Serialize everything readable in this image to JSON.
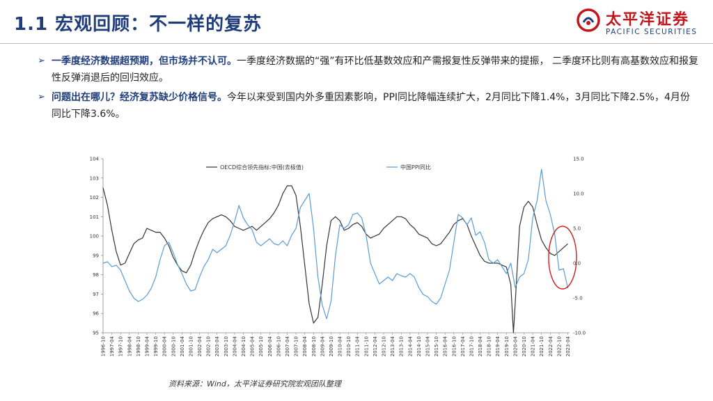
{
  "header": {
    "title": "1.1 宏观回顾：不一样的复苏",
    "logo_cn": "太平洋证券",
    "logo_en": "PACIFIC SECURITIES"
  },
  "bullets": [
    {
      "lead": "一季度经济数据超预期，但市场并不认可。",
      "text": "一季度经济数据的“强”有环比低基数效应和产需报复性反弹带来的提振， 二季度环比则有高基数效应和报复性反弹消退后的回归效应。"
    },
    {
      "lead": "问题出在哪儿？经济复苏缺少价格信号。",
      "text": "今年以来受到国内外多重因素影响，PPI同比降幅连续扩大，2月同比下降1.4%，3月同比下降2.5%，4月份同比下降3.6%。"
    }
  ],
  "source": "资料来源：Wind，太平洋证券研究院宏观团队整理",
  "colors": {
    "title": "#1f3d7a",
    "logo_red": "#c0161c",
    "oecd_line": "#333333",
    "ppi_line": "#5b9bd5",
    "highlight": "#cc1f1f"
  },
  "chart_data": {
    "type": "line",
    "x_ticks": [
      "1996-10",
      "1997-04",
      "1997-10",
      "1998-04",
      "1998-10",
      "1999-04",
      "1999-10",
      "2000-04",
      "2000-10",
      "2001-04",
      "2001-10",
      "2002-04",
      "2002-10",
      "2003-04",
      "2003-10",
      "2004-04",
      "2004-10",
      "2005-04",
      "2005-10",
      "2006-04",
      "2006-10",
      "2007-04",
      "2007-10",
      "2008-04",
      "2008-10",
      "2009-04",
      "2009-10",
      "2010-04",
      "2010-10",
      "2011-04",
      "2011-10",
      "2012-04",
      "2012-10",
      "2013-04",
      "2013-10",
      "2014-04",
      "2014-10",
      "2015-04",
      "2015-10",
      "2016-04",
      "2016-10",
      "2017-04",
      "2017-10",
      "2018-04",
      "2018-10",
      "2019-04",
      "2019-10",
      "2020-04",
      "2020-10",
      "2021-04",
      "2021-10",
      "2022-04",
      "2022-10",
      "2023-04"
    ],
    "y_left": {
      "min": 95,
      "max": 104,
      "ticks": [
        "95",
        "96",
        "97",
        "98",
        "99",
        "100",
        "101",
        "102",
        "103",
        "104"
      ]
    },
    "y_right": {
      "min": -10,
      "max": 15,
      "ticks": [
        "-10.0",
        "-5.0",
        "0.0",
        "5.0",
        "10.0",
        "15.0"
      ]
    },
    "series": [
      {
        "name": "OECD综合领先指标:中国(去极值)",
        "axis": "left",
        "points": [
          [
            1996.75,
            102.5
          ],
          [
            1997.0,
            101.6
          ],
          [
            1997.25,
            100.3
          ],
          [
            1997.5,
            99.2
          ],
          [
            1997.75,
            98.5
          ],
          [
            1998.0,
            98.6
          ],
          [
            1998.25,
            99.1
          ],
          [
            1998.5,
            99.6
          ],
          [
            1998.75,
            99.8
          ],
          [
            1999.0,
            99.9
          ],
          [
            1999.25,
            100.4
          ],
          [
            1999.5,
            100.3
          ],
          [
            1999.75,
            100.2
          ],
          [
            2000.0,
            100.2
          ],
          [
            2000.25,
            99.9
          ],
          [
            2000.5,
            99.5
          ],
          [
            2000.75,
            98.9
          ],
          [
            2001.0,
            98.5
          ],
          [
            2001.25,
            98.2
          ],
          [
            2001.5,
            98.1
          ],
          [
            2001.75,
            98.5
          ],
          [
            2002.0,
            99.2
          ],
          [
            2002.25,
            99.8
          ],
          [
            2002.5,
            100.3
          ],
          [
            2002.75,
            100.7
          ],
          [
            2003.0,
            100.9
          ],
          [
            2003.25,
            101.0
          ],
          [
            2003.5,
            101.1
          ],
          [
            2003.75,
            101.0
          ],
          [
            2004.0,
            100.8
          ],
          [
            2004.25,
            100.5
          ],
          [
            2004.5,
            100.4
          ],
          [
            2004.75,
            100.3
          ],
          [
            2005.0,
            100.4
          ],
          [
            2005.25,
            100.5
          ],
          [
            2005.5,
            100.3
          ],
          [
            2005.75,
            100.5
          ],
          [
            2006.0,
            100.7
          ],
          [
            2006.25,
            100.9
          ],
          [
            2006.5,
            101.2
          ],
          [
            2006.75,
            101.6
          ],
          [
            2007.0,
            102.2
          ],
          [
            2007.25,
            102.6
          ],
          [
            2007.5,
            102.6
          ],
          [
            2007.75,
            102.1
          ],
          [
            2008.0,
            100.5
          ],
          [
            2008.25,
            98.5
          ],
          [
            2008.5,
            96.5
          ],
          [
            2008.75,
            95.5
          ],
          [
            2009.0,
            95.8
          ],
          [
            2009.25,
            97.5
          ],
          [
            2009.5,
            99.5
          ],
          [
            2009.75,
            100.8
          ],
          [
            2010.0,
            101.0
          ],
          [
            2010.25,
            100.8
          ],
          [
            2010.5,
            100.3
          ],
          [
            2010.75,
            100.4
          ],
          [
            2011.0,
            100.6
          ],
          [
            2011.25,
            100.7
          ],
          [
            2011.5,
            100.5
          ],
          [
            2011.75,
            100.1
          ],
          [
            2012.0,
            99.9
          ],
          [
            2012.25,
            100.0
          ],
          [
            2012.5,
            100.1
          ],
          [
            2012.75,
            100.4
          ],
          [
            2013.0,
            100.6
          ],
          [
            2013.25,
            100.8
          ],
          [
            2013.5,
            101.0
          ],
          [
            2013.75,
            101.0
          ],
          [
            2014.0,
            100.9
          ],
          [
            2014.25,
            100.6
          ],
          [
            2014.5,
            100.4
          ],
          [
            2014.75,
            100.1
          ],
          [
            2015.0,
            100.0
          ],
          [
            2015.25,
            99.9
          ],
          [
            2015.5,
            99.6
          ],
          [
            2015.75,
            99.5
          ],
          [
            2016.0,
            99.6
          ],
          [
            2016.25,
            99.9
          ],
          [
            2016.5,
            100.2
          ],
          [
            2016.75,
            100.6
          ],
          [
            2017.0,
            100.8
          ],
          [
            2017.25,
            100.9
          ],
          [
            2017.5,
            100.6
          ],
          [
            2017.75,
            100.0
          ],
          [
            2018.0,
            99.5
          ],
          [
            2018.25,
            99.0
          ],
          [
            2018.5,
            98.7
          ],
          [
            2018.75,
            98.6
          ],
          [
            2019.0,
            98.6
          ],
          [
            2019.25,
            98.6
          ],
          [
            2019.5,
            98.5
          ],
          [
            2019.75,
            98.4
          ],
          [
            2020.0,
            97.5
          ],
          [
            2020.15,
            95.0
          ],
          [
            2020.25,
            96.5
          ],
          [
            2020.5,
            100.5
          ],
          [
            2020.75,
            101.5
          ],
          [
            2021.0,
            101.8
          ],
          [
            2021.25,
            101.5
          ],
          [
            2021.5,
            100.6
          ],
          [
            2021.75,
            99.8
          ],
          [
            2022.0,
            99.4
          ],
          [
            2022.25,
            99.1
          ],
          [
            2022.5,
            99.0
          ],
          [
            2022.75,
            99.2
          ],
          [
            2023.0,
            99.4
          ],
          [
            2023.25,
            99.6
          ]
        ]
      },
      {
        "name": "中国PPI同比",
        "axis": "right",
        "points": [
          [
            1996.75,
            0.0
          ],
          [
            1997.0,
            0.2
          ],
          [
            1997.25,
            -0.5
          ],
          [
            1997.5,
            -0.3
          ],
          [
            1997.75,
            -1.0
          ],
          [
            1998.0,
            -2.5
          ],
          [
            1998.25,
            -4.0
          ],
          [
            1998.5,
            -5.0
          ],
          [
            1998.75,
            -5.5
          ],
          [
            1999.0,
            -5.2
          ],
          [
            1999.25,
            -4.6
          ],
          [
            1999.5,
            -3.6
          ],
          [
            1999.75,
            -2.0
          ],
          [
            2000.0,
            0.5
          ],
          [
            2000.25,
            2.5
          ],
          [
            2000.5,
            3.0
          ],
          [
            2000.75,
            1.5
          ],
          [
            2001.0,
            -0.2
          ],
          [
            2001.25,
            -1.5
          ],
          [
            2001.5,
            -3.0
          ],
          [
            2001.75,
            -4.0
          ],
          [
            2002.0,
            -3.8
          ],
          [
            2002.25,
            -2.0
          ],
          [
            2002.5,
            -0.5
          ],
          [
            2002.75,
            0.5
          ],
          [
            2003.0,
            2.0
          ],
          [
            2003.25,
            1.5
          ],
          [
            2003.5,
            2.0
          ],
          [
            2003.75,
            2.5
          ],
          [
            2004.0,
            4.0
          ],
          [
            2004.25,
            6.0
          ],
          [
            2004.5,
            8.3
          ],
          [
            2004.75,
            6.5
          ],
          [
            2005.0,
            5.5
          ],
          [
            2005.25,
            4.8
          ],
          [
            2005.5,
            3.0
          ],
          [
            2005.75,
            2.5
          ],
          [
            2006.0,
            3.0
          ],
          [
            2006.25,
            3.5
          ],
          [
            2006.5,
            2.8
          ],
          [
            2006.75,
            2.6
          ],
          [
            2007.0,
            3.2
          ],
          [
            2007.25,
            2.5
          ],
          [
            2007.5,
            4.0
          ],
          [
            2007.75,
            5.0
          ],
          [
            2008.0,
            8.0
          ],
          [
            2008.25,
            9.0
          ],
          [
            2008.5,
            10.0
          ],
          [
            2008.75,
            5.0
          ],
          [
            2009.0,
            -2.0
          ],
          [
            2009.25,
            -6.0
          ],
          [
            2009.5,
            -8.0
          ],
          [
            2009.75,
            -5.5
          ],
          [
            2010.0,
            1.0
          ],
          [
            2010.25,
            5.5
          ],
          [
            2010.5,
            5.0
          ],
          [
            2010.75,
            5.5
          ],
          [
            2011.0,
            7.0
          ],
          [
            2011.25,
            7.2
          ],
          [
            2011.5,
            6.5
          ],
          [
            2011.75,
            4.0
          ],
          [
            2012.0,
            0.0
          ],
          [
            2012.25,
            -1.5
          ],
          [
            2012.5,
            -3.0
          ],
          [
            2012.75,
            -2.5
          ],
          [
            2013.0,
            -2.0
          ],
          [
            2013.25,
            -2.5
          ],
          [
            2013.5,
            -1.5
          ],
          [
            2013.75,
            -1.8
          ],
          [
            2014.0,
            -2.0
          ],
          [
            2014.25,
            -1.5
          ],
          [
            2014.5,
            -2.0
          ],
          [
            2014.75,
            -3.5
          ],
          [
            2015.0,
            -4.5
          ],
          [
            2015.25,
            -4.8
          ],
          [
            2015.5,
            -5.5
          ],
          [
            2015.75,
            -5.9
          ],
          [
            2016.0,
            -5.0
          ],
          [
            2016.25,
            -3.0
          ],
          [
            2016.5,
            -1.0
          ],
          [
            2016.75,
            3.0
          ],
          [
            2017.0,
            7.0
          ],
          [
            2017.25,
            6.5
          ],
          [
            2017.5,
            5.5
          ],
          [
            2017.75,
            6.5
          ],
          [
            2018.0,
            4.0
          ],
          [
            2018.25,
            4.5
          ],
          [
            2018.5,
            3.0
          ],
          [
            2018.75,
            0.5
          ],
          [
            2019.0,
            0.0
          ],
          [
            2019.25,
            0.5
          ],
          [
            2019.5,
            -0.5
          ],
          [
            2019.75,
            -1.5
          ],
          [
            2020.0,
            0.0
          ],
          [
            2020.25,
            -3.5
          ],
          [
            2020.5,
            -2.0
          ],
          [
            2020.75,
            -1.5
          ],
          [
            2021.0,
            0.5
          ],
          [
            2021.25,
            6.5
          ],
          [
            2021.5,
            9.0
          ],
          [
            2021.75,
            13.5
          ],
          [
            2022.0,
            9.0
          ],
          [
            2022.25,
            7.0
          ],
          [
            2022.5,
            4.2
          ],
          [
            2022.75,
            -1.0
          ],
          [
            2023.0,
            -0.8
          ],
          [
            2023.25,
            -3.6
          ]
        ]
      }
    ],
    "xlim": [
      1996.75,
      2023.35
    ],
    "highlight": "ellipse around 2022-10 to 2023-04",
    "legend_position": "top"
  }
}
